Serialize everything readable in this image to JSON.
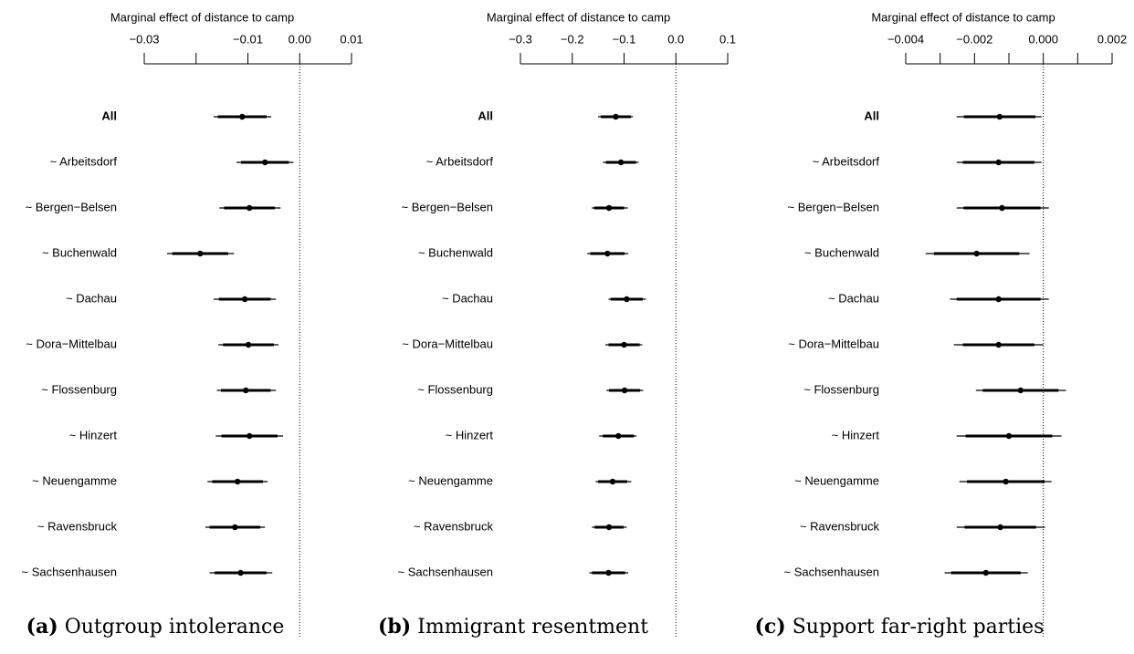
{
  "chart_data": [
    {
      "type": "coefficient",
      "xlabel": "Marginal effect of distance to camp",
      "caption_label": "(a)",
      "caption": "Outgroup intolerance",
      "categories": [
        "All",
        "~ Arbeitsdorf",
        "~ Bergen−Belsen",
        "~ Buchenwald",
        "~ Dachau",
        "~ Dora−Mittelbau",
        "~ Flossenburg",
        "~ Hinzert",
        "~ Neuengamme",
        "~ Ravensbruck",
        "~ Sachsenhausen"
      ],
      "values": [
        -0.0111,
        -0.0067,
        -0.0097,
        -0.0192,
        -0.0106,
        -0.0099,
        -0.0104,
        -0.0097,
        -0.012,
        -0.0125,
        -0.0114
      ],
      "ci95": [
        [
          -0.0166,
          -0.0055
        ],
        [
          -0.0122,
          -0.0012
        ],
        [
          -0.0155,
          -0.0037
        ],
        [
          -0.0256,
          -0.0127
        ],
        [
          -0.0166,
          -0.0046
        ],
        [
          -0.0157,
          -0.0041
        ],
        [
          -0.016,
          -0.0046
        ],
        [
          -0.0162,
          -0.0032
        ],
        [
          -0.0178,
          -0.0062
        ],
        [
          -0.0182,
          -0.0067
        ],
        [
          -0.0174,
          -0.0053
        ]
      ],
      "ci90": [
        [
          -0.0158,
          -0.0064
        ],
        [
          -0.0113,
          -0.0021
        ],
        [
          -0.0146,
          -0.0048
        ],
        [
          -0.0246,
          -0.0138
        ],
        [
          -0.0156,
          -0.0056
        ],
        [
          -0.0148,
          -0.005
        ],
        [
          -0.0152,
          -0.0056
        ],
        [
          -0.0151,
          -0.0043
        ],
        [
          -0.0169,
          -0.0071
        ],
        [
          -0.0174,
          -0.0076
        ],
        [
          -0.0164,
          -0.0064
        ]
      ],
      "xlim": [
        -0.03,
        0.01
      ],
      "xticks": [
        {
          "value": -0.03,
          "label": "−0.03"
        },
        {
          "value": -0.01,
          "label": "−0.01"
        },
        {
          "value": 0,
          "label": "0.00"
        },
        0.01
      ],
      "xminorticks": [
        -0.02
      ],
      "refline": 0,
      "color": "#000000"
    },
    {
      "type": "coefficient",
      "xlabel": "Marginal effect of distance to camp",
      "caption_label": "(b)",
      "caption": "Immigrant resentment",
      "categories": [
        "All",
        "~ Arbeitsdorf",
        "~ Bergen−Belsen",
        "~ Buchenwald",
        "~ Dachau",
        "~ Dora−Mittelbau",
        "~ Flossenburg",
        "~ Hinzert",
        "~ Neuengamme",
        "~ Ravensbruck",
        "~ Sachsenhausen"
      ],
      "values": [
        -0.116,
        -0.106,
        -0.129,
        -0.132,
        -0.095,
        -0.1,
        -0.099,
        -0.111,
        -0.122,
        -0.129,
        -0.13
      ],
      "ci95": [
        [
          -0.15,
          -0.083
        ],
        [
          -0.141,
          -0.072
        ],
        [
          -0.162,
          -0.093
        ],
        [
          -0.171,
          -0.092
        ],
        [
          -0.13,
          -0.058
        ],
        [
          -0.136,
          -0.065
        ],
        [
          -0.134,
          -0.063
        ],
        [
          -0.148,
          -0.076
        ],
        [
          -0.155,
          -0.086
        ],
        [
          -0.162,
          -0.095
        ],
        [
          -0.167,
          -0.092
        ]
      ],
      "ci90": [
        [
          -0.145,
          -0.087
        ],
        [
          -0.135,
          -0.077
        ],
        [
          -0.158,
          -0.1
        ],
        [
          -0.165,
          -0.099
        ],
        [
          -0.126,
          -0.064
        ],
        [
          -0.13,
          -0.07
        ],
        [
          -0.129,
          -0.069
        ],
        [
          -0.141,
          -0.081
        ],
        [
          -0.15,
          -0.094
        ],
        [
          -0.157,
          -0.101
        ],
        [
          -0.162,
          -0.098
        ]
      ],
      "xlim": [
        -0.3,
        0.1
      ],
      "xticks": [
        {
          "value": -0.3,
          "label": "−0.3"
        },
        {
          "value": -0.2,
          "label": "−0.2"
        },
        {
          "value": -0.1,
          "label": "−0.1"
        },
        {
          "value": 0,
          "label": "0.0"
        },
        0.1
      ],
      "xminorticks": [],
      "refline": 0,
      "color": "#000000"
    },
    {
      "type": "coefficient",
      "xlabel": "Marginal effect of distance to camp",
      "caption_label": "(c)",
      "caption": "Support far-right parties",
      "categories": [
        "All",
        "~ Arbeitsdorf",
        "~ Bergen−Belsen",
        "~ Buchenwald",
        "~ Dachau",
        "~ Dora−Mittelbau",
        "~ Flossenburg",
        "~ Hinzert",
        "~ Neuengamme",
        "~ Ravensbruck",
        "~ Sachsenhausen"
      ],
      "values": [
        -0.00127,
        -0.0013,
        -0.0012,
        -0.00194,
        -0.0013,
        -0.0013,
        -0.00066,
        -0.001,
        -0.00109,
        -0.00125,
        -0.00167
      ],
      "ci95": [
        [
          -0.00252,
          -5e-05
        ],
        [
          -0.00252,
          -5e-05
        ],
        [
          -0.00252,
          0.00016
        ],
        [
          -0.00342,
          -0.0004
        ],
        [
          -0.00271,
          0.00016
        ],
        [
          -0.0026,
          0
        ],
        [
          -0.00196,
          0.00066
        ],
        [
          -0.00252,
          0.00053
        ],
        [
          -0.00244,
          0.00024
        ],
        [
          -0.00252,
          5e-05
        ],
        [
          -0.00287,
          -0.00045
        ]
      ],
      "ci90": [
        [
          -0.00231,
          -0.00023
        ],
        [
          -0.00234,
          -0.00026
        ],
        [
          -0.00232,
          -8e-05
        ],
        [
          -0.00318,
          -0.0007
        ],
        [
          -0.00252,
          -8e-05
        ],
        [
          -0.00234,
          -0.00026
        ],
        [
          -0.00176,
          0.00044
        ],
        [
          -0.00226,
          0.00026
        ],
        [
          -0.00222,
          4e-05
        ],
        [
          -0.00229,
          -0.00021
        ],
        [
          -0.00268,
          -0.00066
        ]
      ],
      "xlim": [
        -0.004,
        0.002
      ],
      "xticks": [
        {
          "value": -0.004,
          "label": "−0.004"
        },
        {
          "value": -0.002,
          "label": "−0.002"
        },
        {
          "value": 0,
          "label": "0.000"
        },
        0.002
      ],
      "xminorticks": [
        -0.003,
        -0.001,
        0.001
      ],
      "refline": 0,
      "color": "#000000"
    }
  ]
}
